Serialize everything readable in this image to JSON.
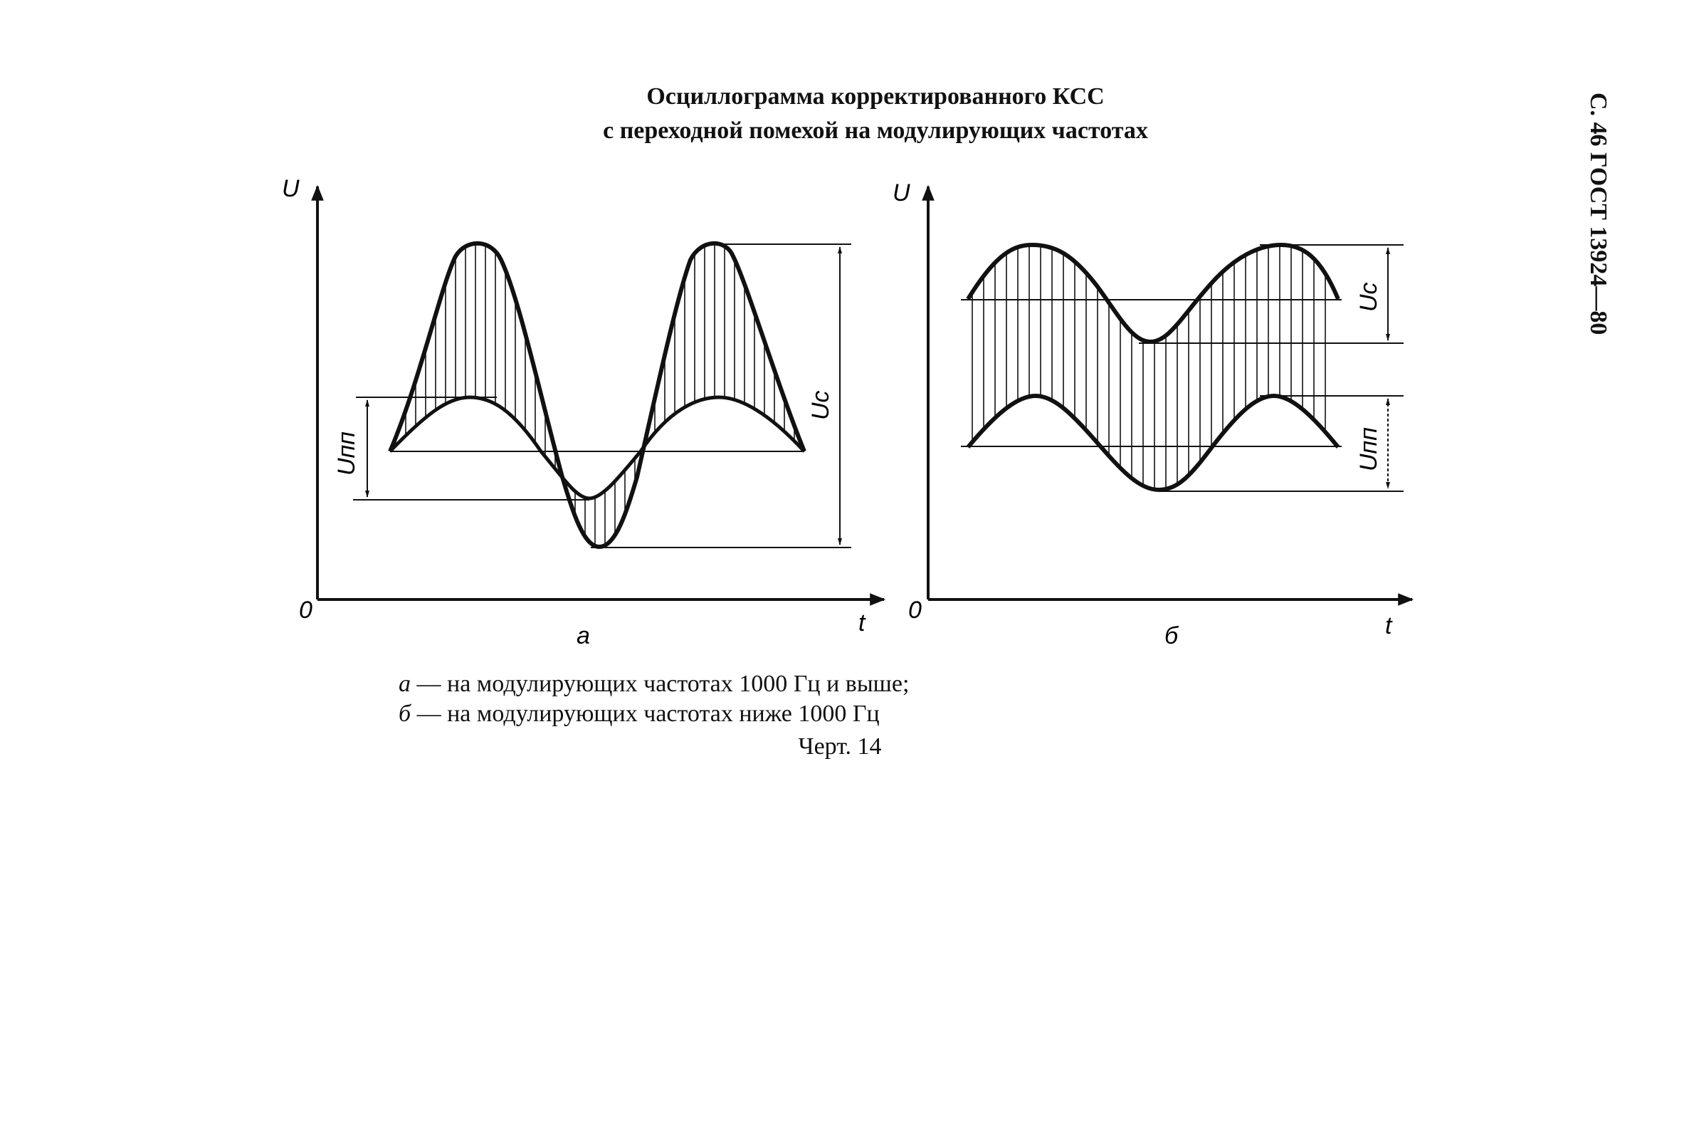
{
  "header": {
    "title_line1": "Осциллограмма корректированного КСС",
    "title_line2": "с переходной помехой на модулирующих  частотах",
    "page_ref": "С. 46 ГОСТ 13924—80"
  },
  "figure_a": {
    "axis_y": "U",
    "axis_x": "t",
    "origin": "0",
    "label_uc": "Uс",
    "label_upp": "Uпп",
    "sublabel": "а"
  },
  "figure_b": {
    "axis_y": "U",
    "axis_x": "t",
    "origin": "0",
    "label_uc": "Uс",
    "label_upp": "Uпп",
    "sublabel": "б"
  },
  "caption": {
    "a_letter": "а",
    "a_text": " — на модулирующих частотах 1000 Гц и выше;",
    "b_letter": "б",
    "b_text": " — на модулирующих частотах ниже 1000 Гц"
  },
  "figure_number": "Черт. 14"
}
